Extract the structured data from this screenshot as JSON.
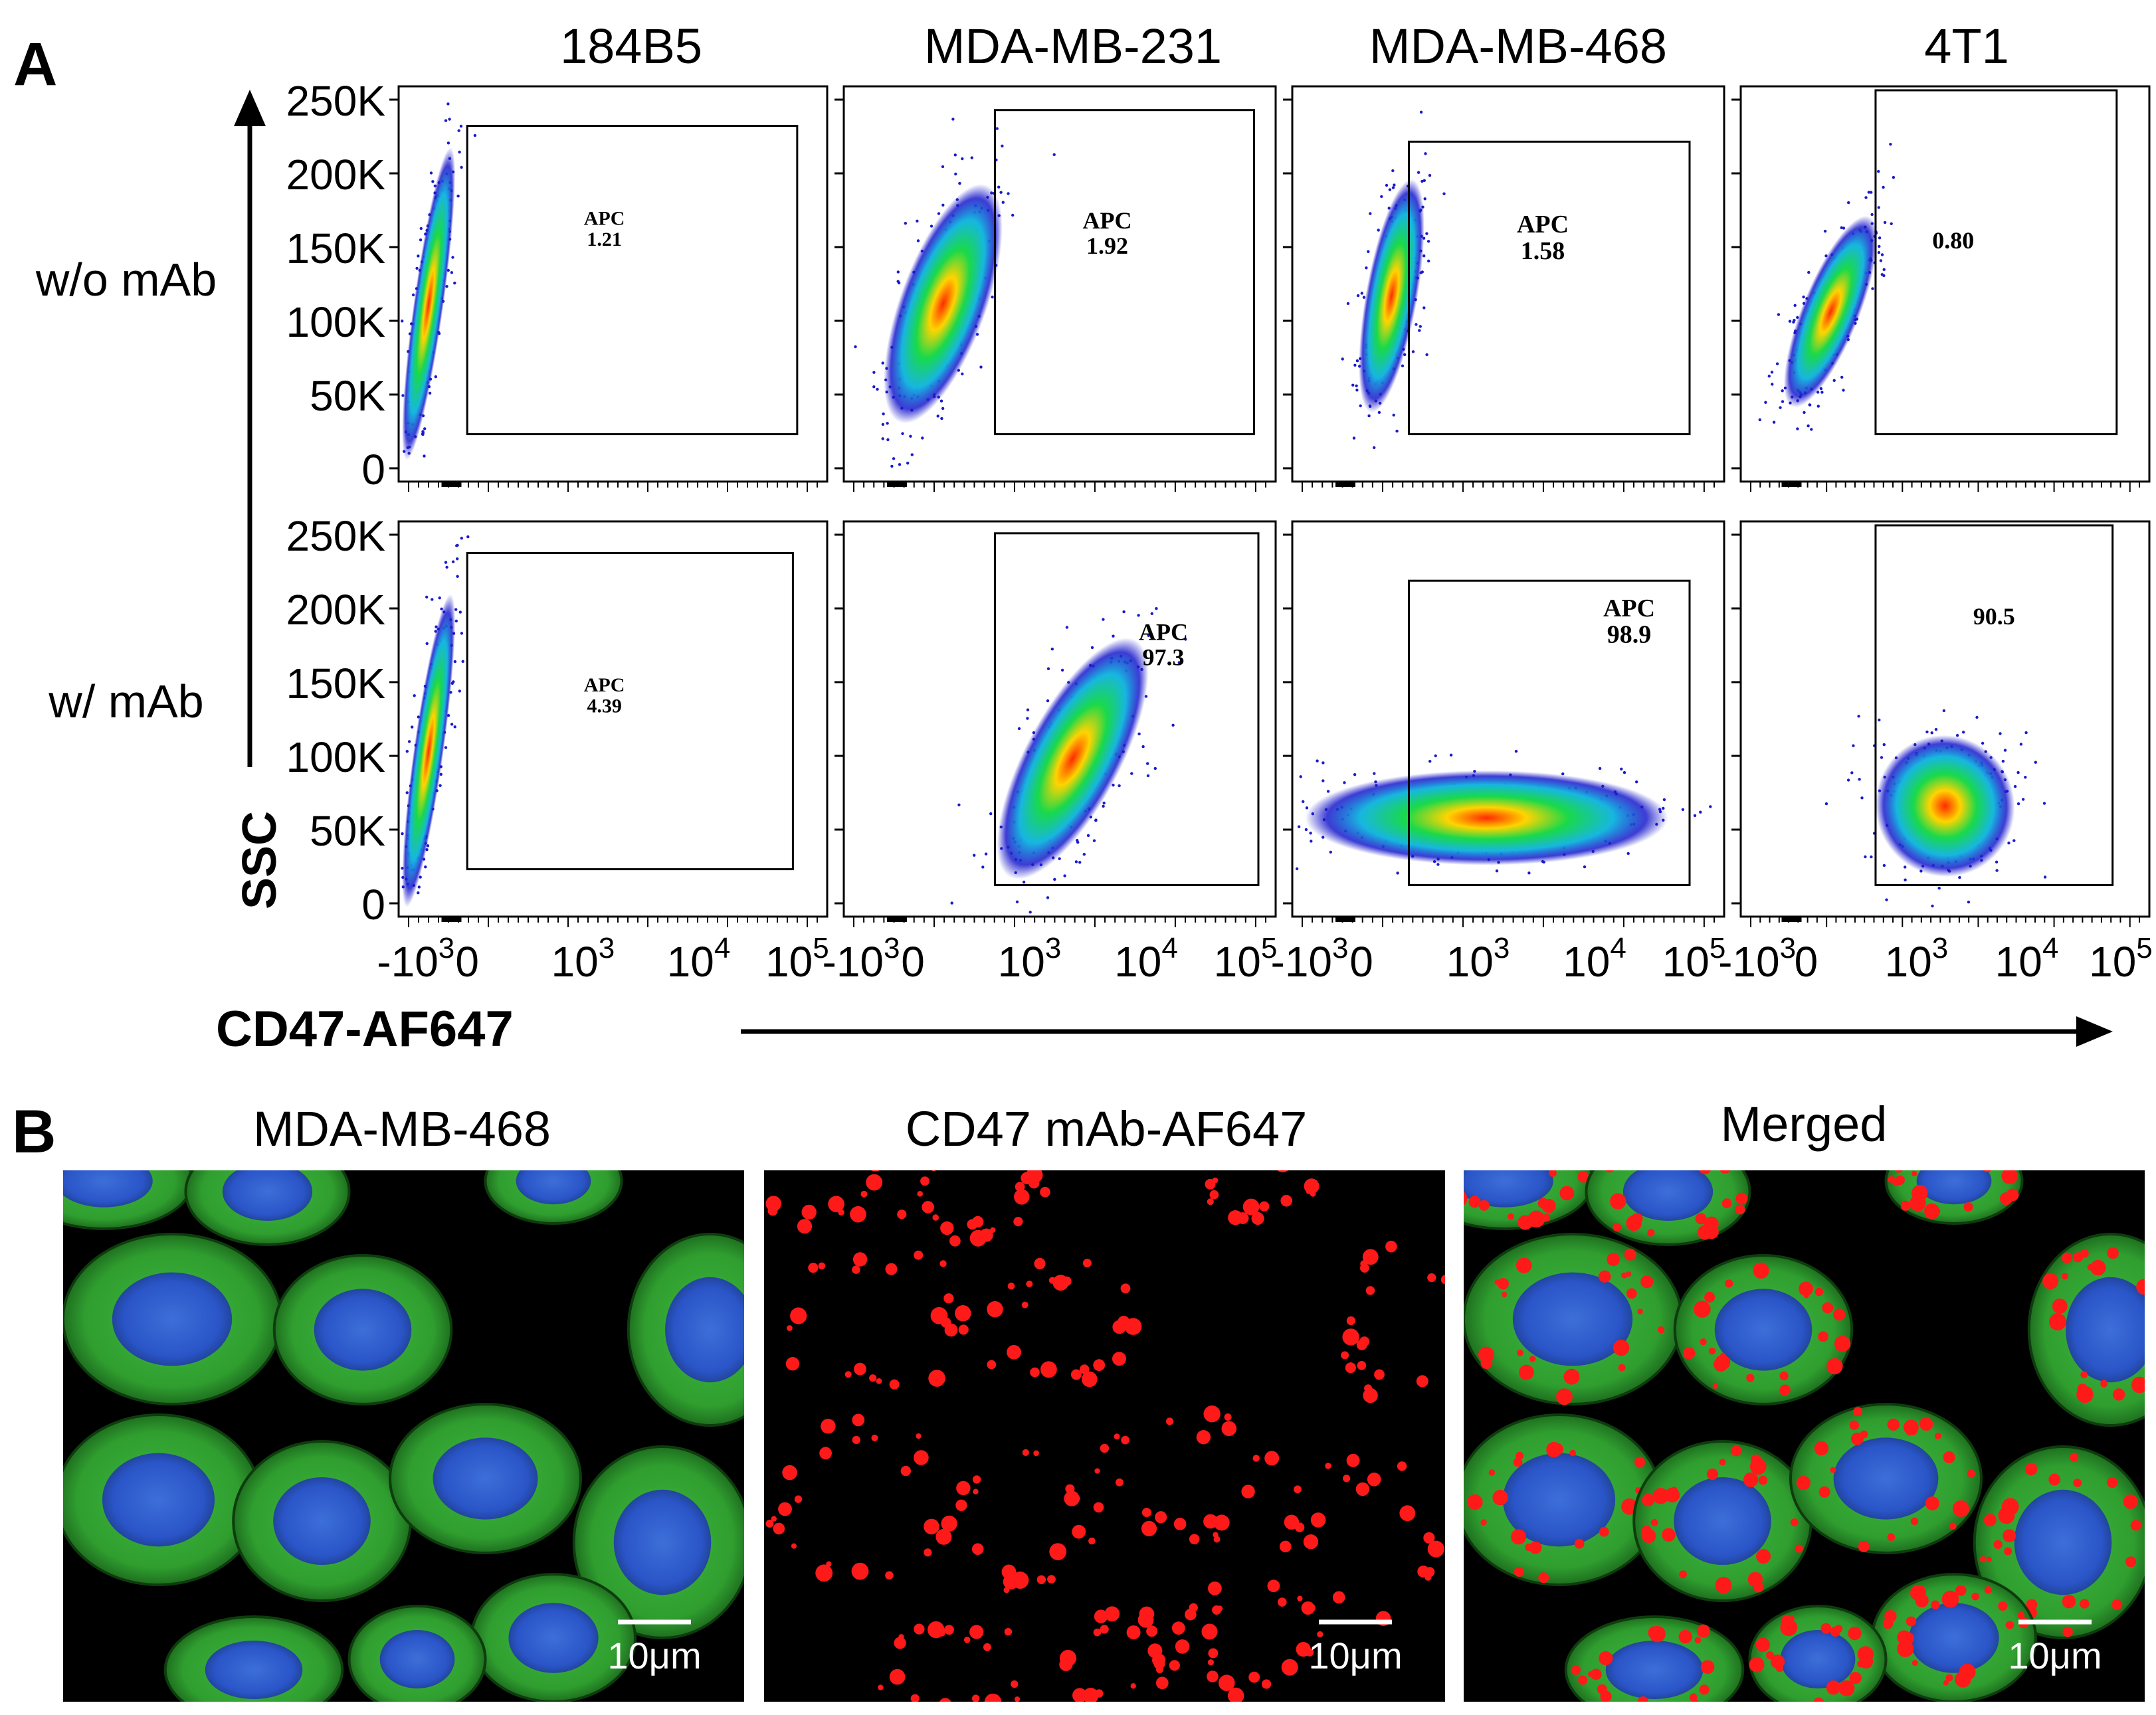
{
  "panel_a": {
    "label": "A",
    "columns": [
      "184B5",
      "MDA-MB-231",
      "MDA-MB-468",
      "4T1"
    ],
    "rows": [
      "w/o mAb",
      "w/ mAb"
    ],
    "y_axis_label": "SSC",
    "x_axis_label": "CD47-AF647",
    "y_ticks": [
      "250K",
      "200K",
      "150K",
      "100K",
      "50K",
      "0"
    ],
    "x_ticks": [
      {
        "base": "-10",
        "exp": "3"
      },
      {
        "base": "0",
        "exp": ""
      },
      {
        "base": "10",
        "exp": "3"
      },
      {
        "base": "10",
        "exp": "4"
      },
      {
        "base": "10",
        "exp": "5"
      }
    ],
    "gates": [
      {
        "row": 0,
        "col": 0,
        "name": "APC",
        "value": "1.21"
      },
      {
        "row": 0,
        "col": 1,
        "name": "APC",
        "value": "1.92"
      },
      {
        "row": 0,
        "col": 2,
        "name": "APC",
        "value": "1.58"
      },
      {
        "row": 0,
        "col": 3,
        "name": "",
        "value": "0.80"
      },
      {
        "row": 1,
        "col": 0,
        "name": "APC",
        "value": "4.39"
      },
      {
        "row": 1,
        "col": 1,
        "name": "APC",
        "value": "97.3"
      },
      {
        "row": 1,
        "col": 2,
        "name": "APC",
        "value": "98.9"
      },
      {
        "row": 1,
        "col": 3,
        "name": "",
        "value": "90.5"
      }
    ]
  },
  "panel_b": {
    "label": "B",
    "images": [
      {
        "title": "MDA-MB-468",
        "scale": "10μm"
      },
      {
        "title": "CD47 mAb-AF647",
        "scale": "10μm"
      },
      {
        "title": "Merged",
        "scale": "10μm"
      }
    ]
  },
  "colors": {
    "density_high": "#ff2a00",
    "density_mid": "#19d94a",
    "density_low": "#1a1acc",
    "cytoplasm": "#2f9e2f",
    "nucleus": "#2a55c8",
    "cd47": "#ff1a1a"
  }
}
